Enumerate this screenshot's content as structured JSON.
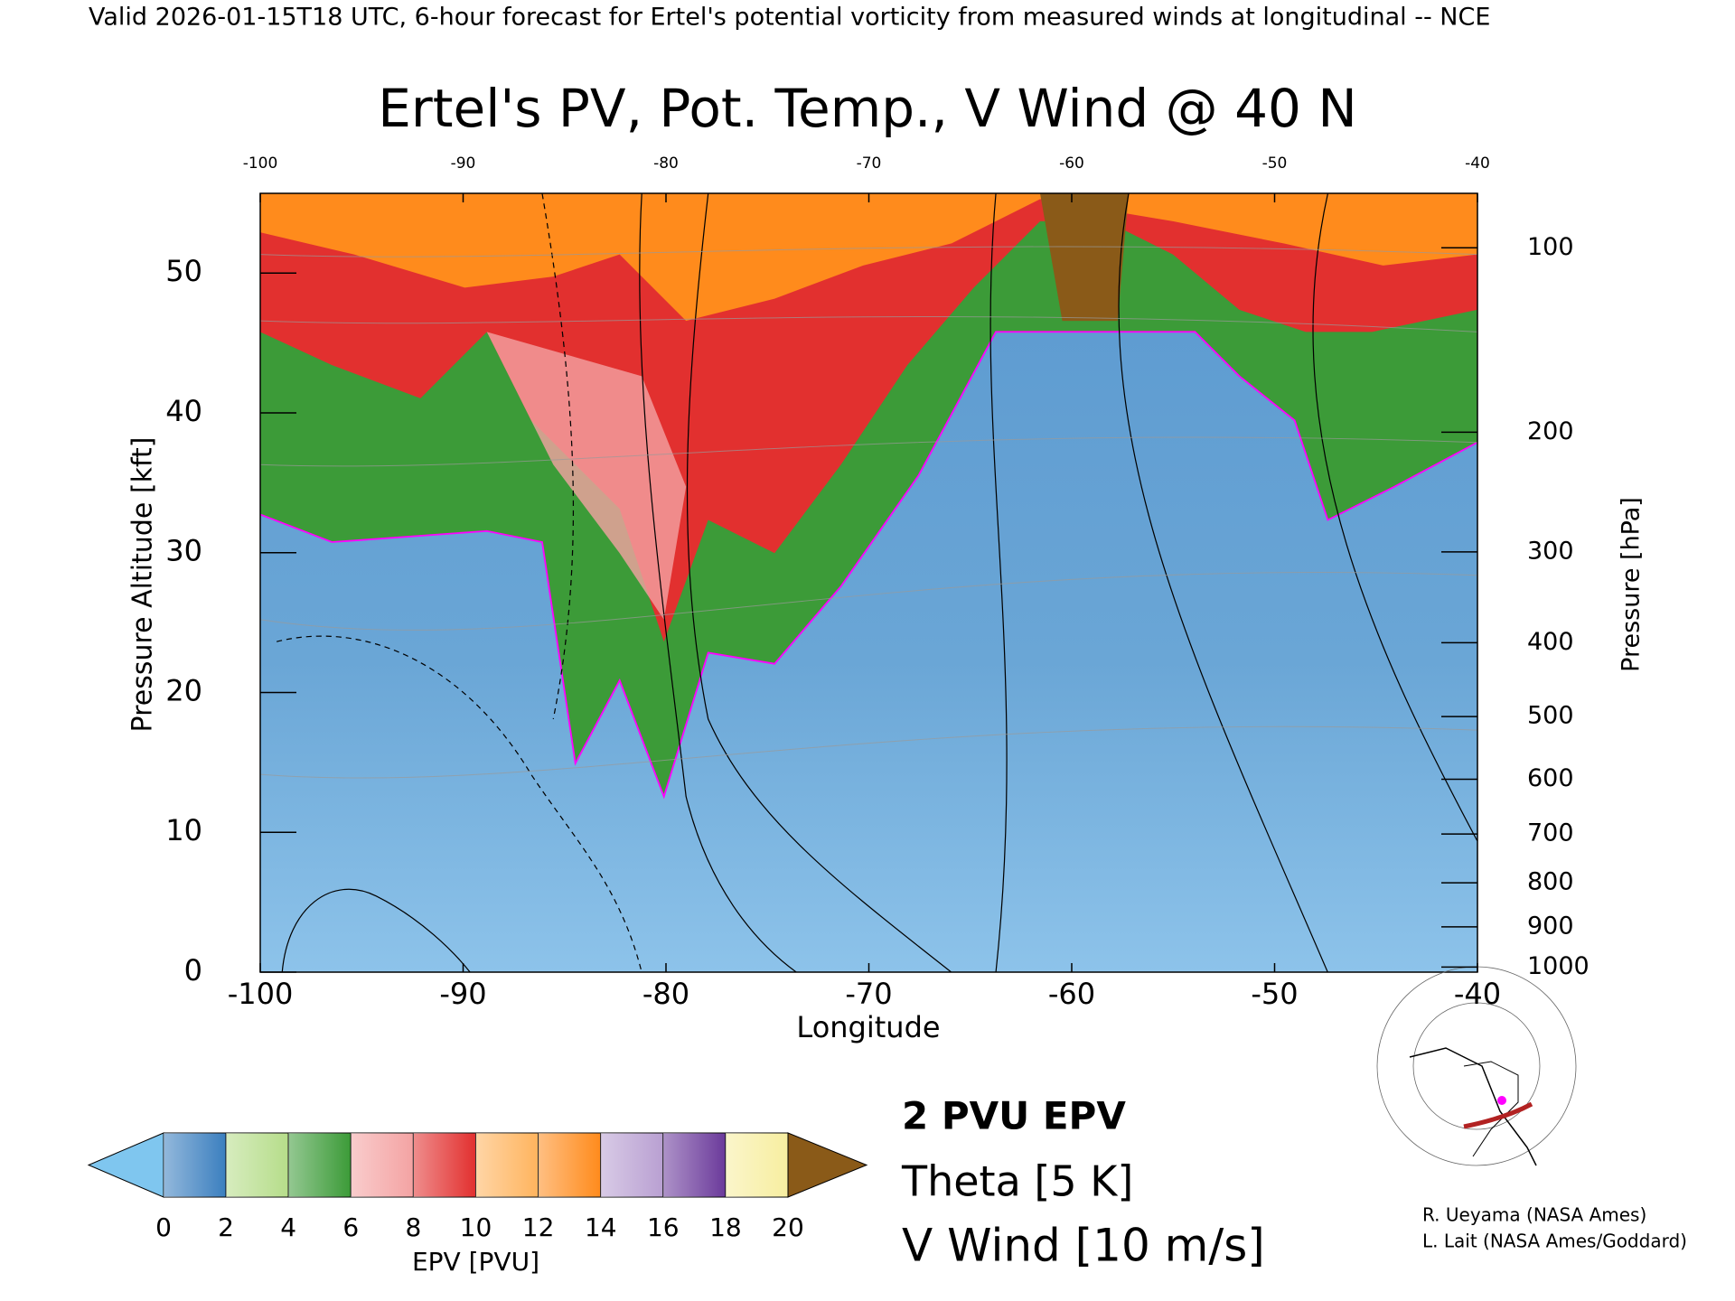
{
  "chart_data": {
    "type": "contour",
    "header": "Valid 2026-01-15T18 UTC, 6-hour forecast for Ertel's potential vorticity from measured winds at longitudinal -- NCE",
    "title": "Ertel's PV, Pot. Temp., V Wind @ 40 N",
    "x_label": "Longitude",
    "y_label": "Pressure Altitude [kft]",
    "y2_label": "Pressure [hPa]",
    "xlim": [
      -100,
      -40
    ],
    "xticks": [
      -100,
      -90,
      -80,
      -70,
      -60,
      -50,
      -40
    ],
    "x2ticks": [
      -100,
      -90,
      -80,
      -70,
      -60,
      -50,
      -40
    ],
    "ylim": [
      0,
      55.7
    ],
    "yticks": [
      0,
      10,
      20,
      30,
      40,
      50
    ],
    "y2ticks": [
      100,
      200,
      300,
      400,
      500,
      600,
      700,
      800,
      900,
      1000
    ],
    "colorbar": {
      "label": "EPV [PVU]",
      "ticks": [
        0,
        2,
        4,
        6,
        8,
        10,
        12,
        14,
        16,
        18,
        20
      ],
      "colors": [
        "#3b7fbf",
        "#b6dd8a",
        "#3c9b38",
        "#f4a3a3",
        "#e2302f",
        "#ffb45e",
        "#ff8b1c",
        "#b9a0d2",
        "#6b3a9b",
        "#f7eea0"
      ],
      "under_color": "#7fc6ef",
      "over_color": "#8a5a18"
    },
    "legend": [
      {
        "name": "2 PVU EPV",
        "color": "#ff00ff"
      },
      {
        "name": "Theta [5 K]",
        "color": "#a0a0a0"
      },
      {
        "name": "V Wind [10 m/s]",
        "color": "#000000"
      }
    ],
    "credits": [
      "R. Ueyama (NASA Ames)",
      "L. Lait (NASA Ames/Goddard)"
    ]
  }
}
